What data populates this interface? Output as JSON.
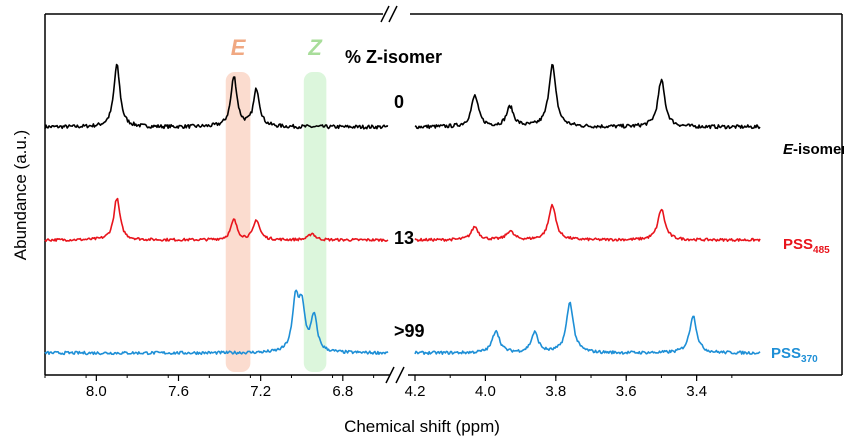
{
  "chart_data": {
    "type": "line",
    "xlabel": "Chemical shift (ppm)",
    "ylabel": "Abundance (a.u.)",
    "axis_break": true,
    "x_reversed": true,
    "segments": [
      {
        "xlim": [
          8.25,
          6.58
        ],
        "ticks": [
          "8.0",
          "7.6",
          "7.2",
          "6.8"
        ],
        "tick_values": [
          8.0,
          7.6,
          7.2,
          6.8
        ]
      },
      {
        "xlim": [
          4.2,
          3.22
        ],
        "ticks": [
          "4.2",
          "4.0",
          "3.8",
          "3.6",
          "3.4"
        ],
        "tick_values": [
          4.2,
          4.0,
          3.8,
          3.6,
          3.4
        ]
      }
    ],
    "highlight_bands": [
      {
        "label": "E",
        "range": [
          7.37,
          7.25
        ],
        "color": "#f7c0a8",
        "label_color": "#f0a882"
      },
      {
        "label": "Z",
        "range": [
          6.99,
          6.88
        ],
        "color": "#bfeebf",
        "label_color": "#a8dd9a"
      }
    ],
    "percent_header": "% Z-isomer",
    "series": [
      {
        "name": "E-isomer",
        "name_italic_part": "E",
        "name_rest": "-isomer",
        "name_sub": "",
        "color": "#000000",
        "percent_z": "0",
        "peaks_left": [
          [
            7.9,
            1.0
          ],
          [
            7.33,
            0.8
          ],
          [
            7.22,
            0.6
          ]
        ],
        "peaks_right": [
          [
            4.03,
            0.5
          ],
          [
            3.93,
            0.32
          ],
          [
            3.81,
            1.0
          ],
          [
            3.5,
            0.75
          ]
        ]
      },
      {
        "name": "PSS485",
        "name_italic_part": "",
        "name_rest": "PSS",
        "name_sub": "485",
        "color": "#e8141c",
        "percent_z": "13",
        "peaks_left": [
          [
            7.9,
            0.95
          ],
          [
            7.33,
            0.45
          ],
          [
            7.22,
            0.45
          ],
          [
            6.95,
            0.15
          ]
        ],
        "peaks_right": [
          [
            4.03,
            0.3
          ],
          [
            3.93,
            0.2
          ],
          [
            3.81,
            0.8
          ],
          [
            3.5,
            0.7
          ]
        ]
      },
      {
        "name": "PSS370",
        "name_italic_part": "",
        "name_rest": "PSS",
        "name_sub": "370",
        "color": "#1e8fd6",
        "percent_z": ">99",
        "peaks_left": [
          [
            7.03,
            1.0
          ],
          [
            7.0,
            0.85
          ],
          [
            6.94,
            0.7
          ]
        ],
        "peaks_right": [
          [
            3.97,
            0.45
          ],
          [
            3.86,
            0.4
          ],
          [
            3.76,
            1.0
          ],
          [
            3.41,
            0.75
          ]
        ]
      }
    ]
  }
}
